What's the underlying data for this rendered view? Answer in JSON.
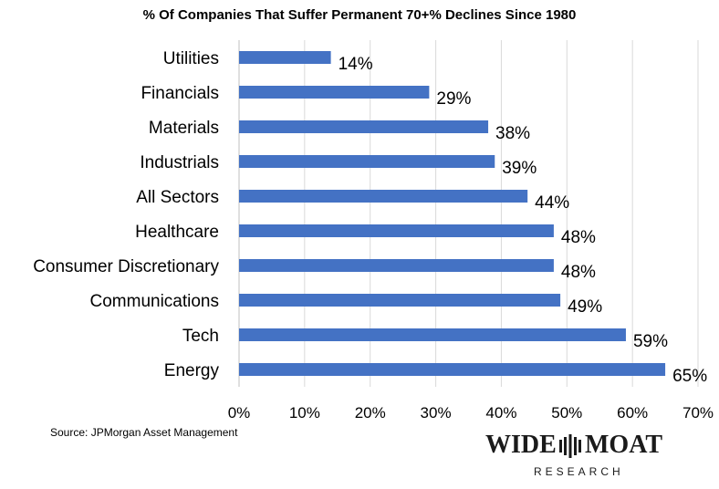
{
  "chart_data": {
    "type": "bar",
    "orientation": "horizontal",
    "title": "% Of Companies That Suffer Permanent 70+% Declines Since 1980",
    "categories": [
      "Utilities",
      "Financials",
      "Materials",
      "Industrials",
      "All Sectors",
      "Healthcare",
      "Consumer Discretionary",
      "Communications",
      "Tech",
      "Energy"
    ],
    "values": [
      14,
      29,
      38,
      39,
      44,
      48,
      48,
      49,
      59,
      65
    ],
    "data_labels": [
      "14%",
      "29%",
      "38%",
      "39%",
      "44%",
      "48%",
      "48%",
      "49%",
      "59%",
      "65%"
    ],
    "xlim": [
      0,
      70
    ],
    "x_ticks": [
      "0%",
      "10%",
      "20%",
      "30%",
      "40%",
      "50%",
      "60%",
      "70%"
    ],
    "grid": true,
    "bar_color": "#4472c4"
  },
  "source": "Source: JPMorgan Asset Management",
  "logo": {
    "word1": "WIDE",
    "word2": "MOAT",
    "sub": "RESEARCH"
  }
}
